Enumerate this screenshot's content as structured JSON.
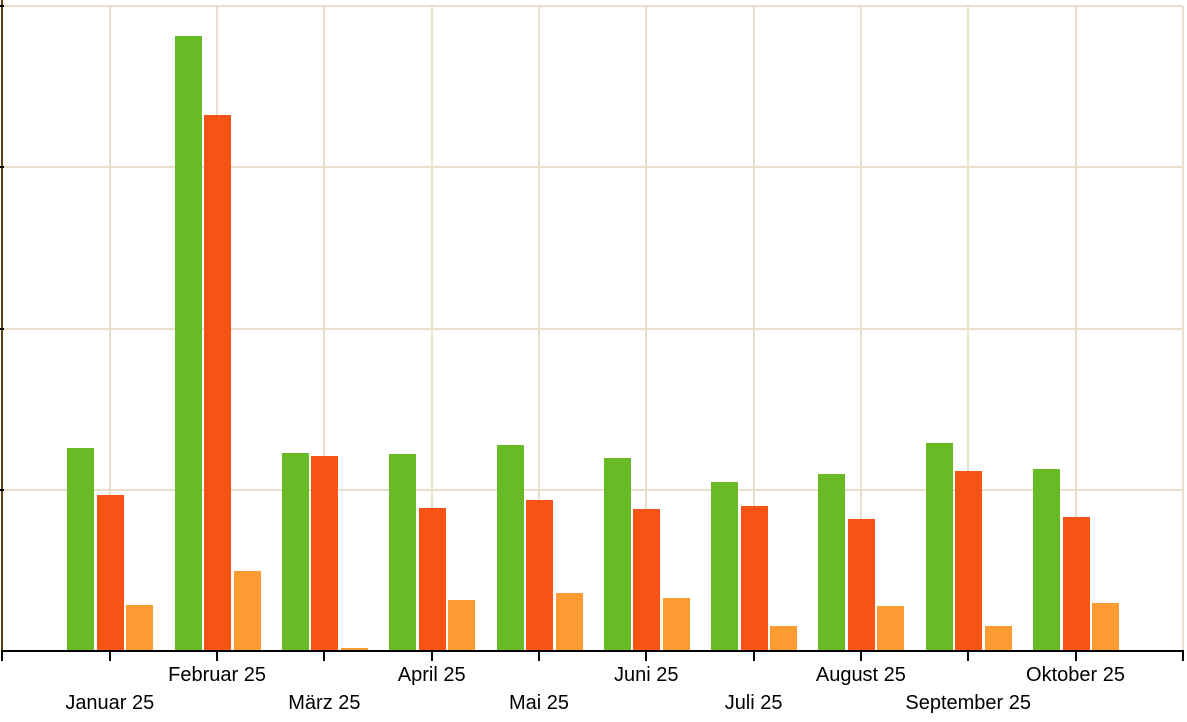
{
  "chart_data": {
    "type": "bar",
    "title": "",
    "xlabel": "",
    "ylabel": "",
    "categories": [
      "Januar 25",
      "Februar 25",
      "März 25",
      "April 25",
      "Mai 25",
      "Juni 25",
      "Juli 25",
      "August 25",
      "September 25",
      "Oktober 25"
    ],
    "series": [
      {
        "name": "green-bars",
        "color": "#68bb24",
        "values": [
          126,
          381,
          123,
          122,
          128,
          120,
          105,
          110,
          129,
          113
        ]
      },
      {
        "name": "red-bars",
        "color": "#f75315",
        "values": [
          97,
          332,
          121,
          89,
          94,
          88,
          90,
          82,
          112,
          83
        ]
      },
      {
        "name": "orange-bars",
        "color": "#fd9b33",
        "values": [
          29,
          50,
          2,
          32,
          36,
          33,
          16,
          28,
          16,
          30
        ]
      }
    ],
    "ylim": [
      0,
      404
    ],
    "gridline_step": 100,
    "grid": true,
    "legend": "none",
    "y_tick_labels": [],
    "label_rows": "alternating (odd months lower row, even months upper row)"
  },
  "colors": {
    "background": "#ffffff",
    "grid": "#e8e0cb",
    "axis_y": "#5e3e12",
    "axis_x": "#000000",
    "tick": "#000000",
    "label_text": "#000000"
  }
}
